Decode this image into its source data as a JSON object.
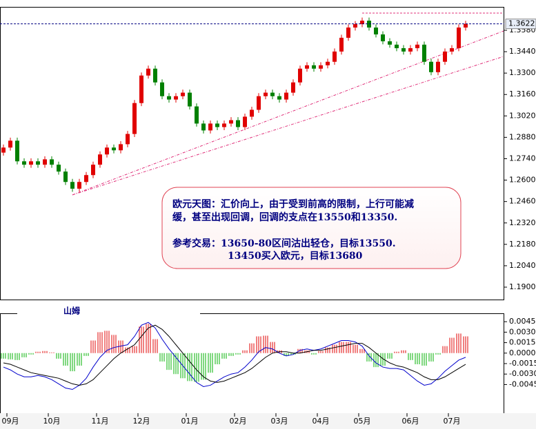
{
  "chart_data": [
    {
      "type": "candlestick",
      "categories": [
        null,
        "09月",
        null,
        null,
        null,
        null,
        null,
        "10月",
        null,
        null,
        null,
        null,
        null,
        null,
        "11月",
        null,
        null,
        null,
        null,
        null,
        "12月",
        null,
        null,
        null,
        null,
        null,
        null,
        "01月",
        null,
        null,
        null,
        null,
        null,
        null,
        "02月",
        null,
        null,
        null,
        null,
        null,
        "03月",
        null,
        null,
        null,
        null,
        null,
        "04月",
        null,
        null,
        null,
        null,
        null,
        "05月",
        null,
        null,
        null,
        null,
        null,
        null,
        "06月",
        null,
        null,
        null,
        null,
        null,
        "07月",
        null,
        null
      ],
      "open": [
        1.278,
        1.2813,
        1.2858,
        1.2723,
        1.2701,
        1.2723,
        1.2701,
        1.2736,
        1.2701,
        1.2656,
        1.2588,
        1.2544,
        1.2588,
        1.2633,
        1.2701,
        1.2768,
        1.2813,
        1.2795,
        1.2835,
        1.2902,
        1.3104,
        1.3284,
        1.3329,
        1.3239,
        1.3149,
        1.3127,
        1.3149,
        1.3172,
        1.3082,
        1.297,
        1.2925,
        1.297,
        1.2947,
        1.297,
        1.2992,
        1.2947,
        1.3015,
        1.306,
        1.3149,
        1.3172,
        1.3149,
        1.3127,
        1.3172,
        1.3239,
        1.3329,
        1.3351,
        1.3329,
        1.3351,
        1.3374,
        1.3441,
        1.3531,
        1.3598,
        1.362,
        1.3643,
        1.3598,
        1.3553,
        1.3508,
        1.3486,
        1.3463,
        1.3441,
        1.3463,
        1.3486,
        1.3374,
        1.3306,
        1.3374,
        1.3441,
        1.3463,
        1.3598
      ],
      "high": [
        1.2833,
        1.2878,
        1.2878,
        1.2743,
        1.2743,
        1.2743,
        1.2756,
        1.2756,
        1.2721,
        1.2676,
        1.2608,
        1.2608,
        1.2653,
        1.2721,
        1.2788,
        1.2833,
        1.2833,
        1.2855,
        1.2922,
        1.3124,
        1.3304,
        1.3349,
        1.3349,
        1.3259,
        1.3169,
        1.3169,
        1.3192,
        1.3192,
        1.3102,
        1.299,
        1.299,
        1.299,
        1.299,
        1.3012,
        1.3012,
        1.3035,
        1.308,
        1.3169,
        1.3192,
        1.3192,
        1.3169,
        1.3192,
        1.3259,
        1.3349,
        1.3371,
        1.3371,
        1.3371,
        1.3394,
        1.3461,
        1.3551,
        1.3618,
        1.364,
        1.3663,
        1.3663,
        1.3618,
        1.3573,
        1.3528,
        1.3506,
        1.3483,
        1.3483,
        1.3506,
        1.3506,
        1.3394,
        1.3394,
        1.3461,
        1.3483,
        1.3618,
        1.3642
      ],
      "low": [
        1.276,
        1.2793,
        1.2703,
        1.2681,
        1.2681,
        1.2681,
        1.2681,
        1.2681,
        1.2636,
        1.2568,
        1.2524,
        1.2524,
        1.2568,
        1.2613,
        1.2681,
        1.2748,
        1.2775,
        1.2775,
        1.2815,
        1.2882,
        1.3084,
        1.3264,
        1.3219,
        1.3129,
        1.3107,
        1.3107,
        1.3129,
        1.3062,
        1.295,
        1.2905,
        1.2905,
        1.2927,
        1.2927,
        1.295,
        1.2927,
        1.2927,
        1.2995,
        1.304,
        1.3129,
        1.3129,
        1.3107,
        1.3107,
        1.3152,
        1.3219,
        1.3309,
        1.3309,
        1.3309,
        1.3331,
        1.3354,
        1.3421,
        1.3511,
        1.3578,
        1.36,
        1.3578,
        1.3533,
        1.3488,
        1.3466,
        1.3443,
        1.3421,
        1.3421,
        1.3443,
        1.3354,
        1.3286,
        1.3286,
        1.3354,
        1.3421,
        1.3443,
        1.3578
      ],
      "close": [
        1.2813,
        1.2858,
        1.2723,
        1.2701,
        1.2723,
        1.2701,
        1.2736,
        1.2701,
        1.2656,
        1.2588,
        1.2544,
        1.2588,
        1.2633,
        1.2701,
        1.2768,
        1.2813,
        1.2795,
        1.2835,
        1.2902,
        1.3104,
        1.3284,
        1.3329,
        1.3239,
        1.3149,
        1.3127,
        1.3149,
        1.3172,
        1.3082,
        1.297,
        1.2925,
        1.297,
        1.2947,
        1.297,
        1.2992,
        1.2947,
        1.3015,
        1.306,
        1.3149,
        1.3172,
        1.3149,
        1.3127,
        1.3172,
        1.3239,
        1.3329,
        1.3351,
        1.3329,
        1.3351,
        1.3374,
        1.3441,
        1.3531,
        1.3598,
        1.362,
        1.3643,
        1.3598,
        1.3553,
        1.3508,
        1.3486,
        1.3463,
        1.3441,
        1.3463,
        1.3486,
        1.3374,
        1.3306,
        1.3374,
        1.3441,
        1.3463,
        1.3598,
        1.3622
      ],
      "up_color": "#e00000",
      "down_color": "#008000",
      "ylim": [
        1.1819,
        1.3733
      ],
      "yticks": [
        {
          "value": 1.358,
          "label": "1.3580"
        },
        {
          "value": 1.344,
          "label": "1.3440"
        },
        {
          "value": 1.33,
          "label": "1.3300"
        },
        {
          "value": 1.316,
          "label": "1.3160"
        },
        {
          "value": 1.302,
          "label": "1.3020"
        },
        {
          "value": 1.288,
          "label": "1.2880"
        },
        {
          "value": 1.274,
          "label": "1.2740"
        },
        {
          "value": 1.26,
          "label": "1.2600"
        },
        {
          "value": 1.246,
          "label": "1.2460"
        },
        {
          "value": 1.232,
          "label": "1.2320"
        },
        {
          "value": 1.218,
          "label": "1.2180"
        },
        {
          "value": 1.204,
          "label": "1.2040"
        },
        {
          "value": 1.19,
          "label": "1.1900"
        }
      ],
      "last_price": 1.3622,
      "annotation": [
        "欧元天图：汇价向上，由于受到前高的限制，上行可能减",
        "缓，甚至出现回调，回调的支点在13550和13350.",
        "参考交易：13650-80区间沽出轻仓，目标13550.",
        "13450买入欧元，目标13680"
      ]
    },
    {
      "type": "macd",
      "title": "山姆",
      "histogram": [
        -0.0008,
        -0.0009,
        -0.001,
        -0.0006,
        -0.0002,
        0.0002,
        0.0003,
        0.0001,
        -0.0008,
        -0.0018,
        -0.0026,
        -0.0018,
        -0.0004,
        0.0018,
        0.003,
        0.0032,
        0.0026,
        0.0018,
        0.0008,
        0.001,
        0.0038,
        0.0042,
        0.002,
        -0.0012,
        -0.0024,
        -0.003,
        -0.0036,
        -0.004,
        -0.0041,
        -0.0038,
        -0.0028,
        -0.0016,
        -0.0008,
        -0.0004,
        -0.0002,
        0.0004,
        0.0014,
        0.0024,
        0.0025,
        0.0016,
        0.0004,
        -0.0004,
        -0.0002,
        0.0006,
        0.0004,
        -0.0002,
        0.0003,
        0.0008,
        0.0012,
        0.0016,
        0.0016,
        0.0012,
        0.0006,
        -0.0012,
        -0.002,
        -0.0018,
        -0.0008,
        0.0002,
        0.0004,
        -0.001,
        -0.0016,
        -0.0018,
        -0.0012,
        -0.0002,
        0.001,
        0.0022,
        0.0028,
        0.0024
      ],
      "macd": [
        -0.002,
        -0.0024,
        -0.003,
        -0.0034,
        -0.0034,
        -0.0032,
        -0.0034,
        -0.0038,
        -0.0044,
        -0.005,
        -0.0052,
        -0.0046,
        -0.0036,
        -0.002,
        -0.0006,
        0.0004,
        0.0008,
        0.001,
        0.0012,
        0.0024,
        0.004,
        0.0044,
        0.0036,
        0.002,
        0.0006,
        -0.0006,
        -0.0018,
        -0.003,
        -0.0042,
        -0.0048,
        -0.0046,
        -0.004,
        -0.0034,
        -0.003,
        -0.0028,
        -0.002,
        -0.001,
        0.0002,
        0.0008,
        0.0006,
        0.0,
        -0.0004,
        -0.0002,
        0.0004,
        0.0006,
        0.0004,
        0.0006,
        0.001,
        0.0014,
        0.0018,
        0.0018,
        0.0016,
        0.001,
        -0.0004,
        -0.0014,
        -0.002,
        -0.0022,
        -0.0022,
        -0.0024,
        -0.0032,
        -0.004,
        -0.0046,
        -0.0044,
        -0.0036,
        -0.0026,
        -0.0018,
        -0.001,
        -0.0006
      ],
      "signal": [
        -0.0014,
        -0.0016,
        -0.002,
        -0.0024,
        -0.0028,
        -0.003,
        -0.0032,
        -0.0034,
        -0.0036,
        -0.004,
        -0.0044,
        -0.0046,
        -0.0044,
        -0.0038,
        -0.0028,
        -0.0018,
        -0.0008,
        0.0,
        0.0006,
        0.0012,
        0.0024,
        0.0036,
        0.004,
        0.0034,
        0.0024,
        0.0012,
        0.0,
        -0.0012,
        -0.0024,
        -0.0034,
        -0.004,
        -0.0042,
        -0.004,
        -0.0036,
        -0.0032,
        -0.0028,
        -0.0022,
        -0.0014,
        -0.0006,
        0.0,
        0.0002,
        0.0002,
        0.0,
        0.0,
        0.0002,
        0.0004,
        0.0004,
        0.0006,
        0.0008,
        0.001,
        0.0012,
        0.0014,
        0.0014,
        0.0008,
        0.0,
        -0.0008,
        -0.0014,
        -0.0018,
        -0.002,
        -0.0024,
        -0.0028,
        -0.0034,
        -0.0038,
        -0.0038,
        -0.0034,
        -0.0028,
        -0.0022,
        -0.0016
      ],
      "up_color": "#e00000",
      "down_color": "#00b000",
      "macd_color": "#0000cc",
      "signal_color": "#000000",
      "ylim": [
        -0.0086,
        0.0057
      ],
      "yticks": [
        0.0045,
        {
          "value": 0.003,
          "label": "0.0030"
        },
        0.0015,
        {
          "value": 0,
          "label": "0.0000"
        },
        -0.0015,
        {
          "value": -0.003,
          "label": "-0.0030"
        },
        -0.0045
      ]
    }
  ]
}
